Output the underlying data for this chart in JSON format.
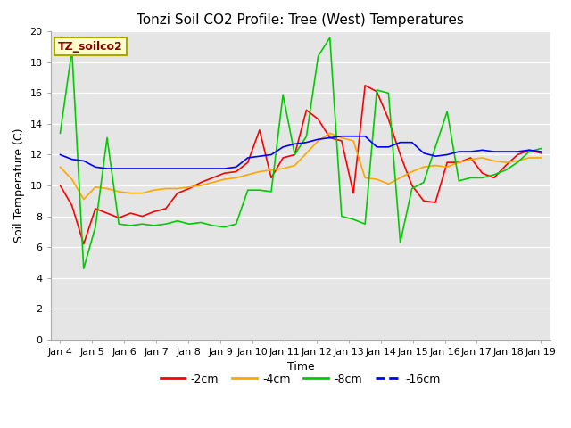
{
  "title": "Tonzi Soil CO2 Profile: Tree (West) Temperatures",
  "xlabel": "Time",
  "ylabel": "Soil Temperature (C)",
  "annotation": "TZ_soilco2",
  "ylim": [
    0,
    20
  ],
  "yticks": [
    0,
    2,
    4,
    6,
    8,
    10,
    12,
    14,
    16,
    18,
    20
  ],
  "x_labels": [
    "Jan 4",
    "Jan 5",
    "Jan 6",
    "Jan 7",
    "Jan 8",
    "Jan 9",
    "Jan 10",
    "Jan 11",
    "Jan 12",
    "Jan 13",
    "Jan 14",
    "Jan 15",
    "Jan 16",
    "Jan 17",
    "Jan 18",
    "Jan 19"
  ],
  "n_days": 16,
  "series": {
    "-2cm": {
      "color": "#ff0000",
      "data": [
        10.0,
        8.7,
        6.2,
        8.5,
        8.2,
        7.9,
        8.2,
        8.0,
        8.3,
        8.5,
        9.5,
        9.8,
        10.2,
        10.5,
        10.8,
        10.9,
        11.5,
        13.6,
        10.5,
        11.8,
        12.0,
        14.9,
        14.3,
        13.1,
        12.9,
        9.5,
        16.5,
        16.1,
        14.3,
        12.0,
        10.0,
        9.0,
        8.9,
        11.5,
        11.5,
        11.8,
        10.8,
        10.5,
        11.3,
        12.0,
        12.3,
        12.1
      ]
    },
    "-4cm": {
      "color": "#ffa500",
      "data": [
        11.2,
        10.4,
        9.1,
        9.9,
        9.8,
        9.6,
        9.5,
        9.5,
        9.7,
        9.8,
        9.8,
        9.9,
        10.0,
        10.2,
        10.4,
        10.5,
        10.7,
        10.9,
        11.0,
        11.1,
        11.3,
        12.1,
        12.9,
        13.4,
        13.1,
        12.9,
        10.5,
        10.4,
        10.1,
        10.5,
        10.9,
        11.2,
        11.3,
        11.2,
        11.5,
        11.7,
        11.8,
        11.6,
        11.5,
        11.6,
        11.8,
        11.8
      ]
    },
    "-8cm": {
      "color": "#00cc00",
      "data": [
        13.4,
        18.8,
        4.6,
        7.3,
        13.1,
        7.5,
        7.4,
        7.5,
        7.4,
        7.5,
        7.7,
        7.5,
        7.6,
        7.4,
        7.3,
        7.5,
        9.7,
        9.7,
        9.6,
        15.9,
        12.0,
        13.2,
        18.4,
        19.6,
        8.0,
        7.8,
        7.5,
        16.2,
        16.0,
        6.3,
        9.8,
        10.2,
        12.5,
        14.8,
        10.3,
        10.5,
        10.5,
        10.7,
        11.0,
        11.5,
        12.2,
        12.4
      ]
    },
    "-16cm": {
      "color": "#0000ff",
      "data": [
        12.0,
        11.7,
        11.6,
        11.2,
        11.1,
        11.1,
        11.1,
        11.1,
        11.1,
        11.1,
        11.1,
        11.1,
        11.1,
        11.1,
        11.1,
        11.2,
        11.8,
        11.9,
        12.0,
        12.5,
        12.7,
        12.8,
        13.0,
        13.1,
        13.2,
        13.2,
        13.2,
        12.5,
        12.5,
        12.8,
        12.8,
        12.1,
        11.9,
        12.0,
        12.2,
        12.2,
        12.3,
        12.2,
        12.2,
        12.2,
        12.3,
        12.2
      ]
    }
  },
  "legend_labels": [
    "-2cm",
    "-4cm",
    "-8cm",
    "-16cm"
  ],
  "legend_colors": [
    "#ff0000",
    "#ffa500",
    "#00cc00",
    "#0000ff"
  ],
  "legend_linestyles": [
    "-",
    "-",
    "-",
    "--"
  ],
  "bg_color": "#e5e5e5",
  "plot_bg_color": "#e5e5e5",
  "title_fontsize": 11,
  "axis_label_fontsize": 9,
  "tick_fontsize": 8,
  "annotation_fontsize": 9,
  "legend_fontsize": 9,
  "linewidth": 1.2
}
